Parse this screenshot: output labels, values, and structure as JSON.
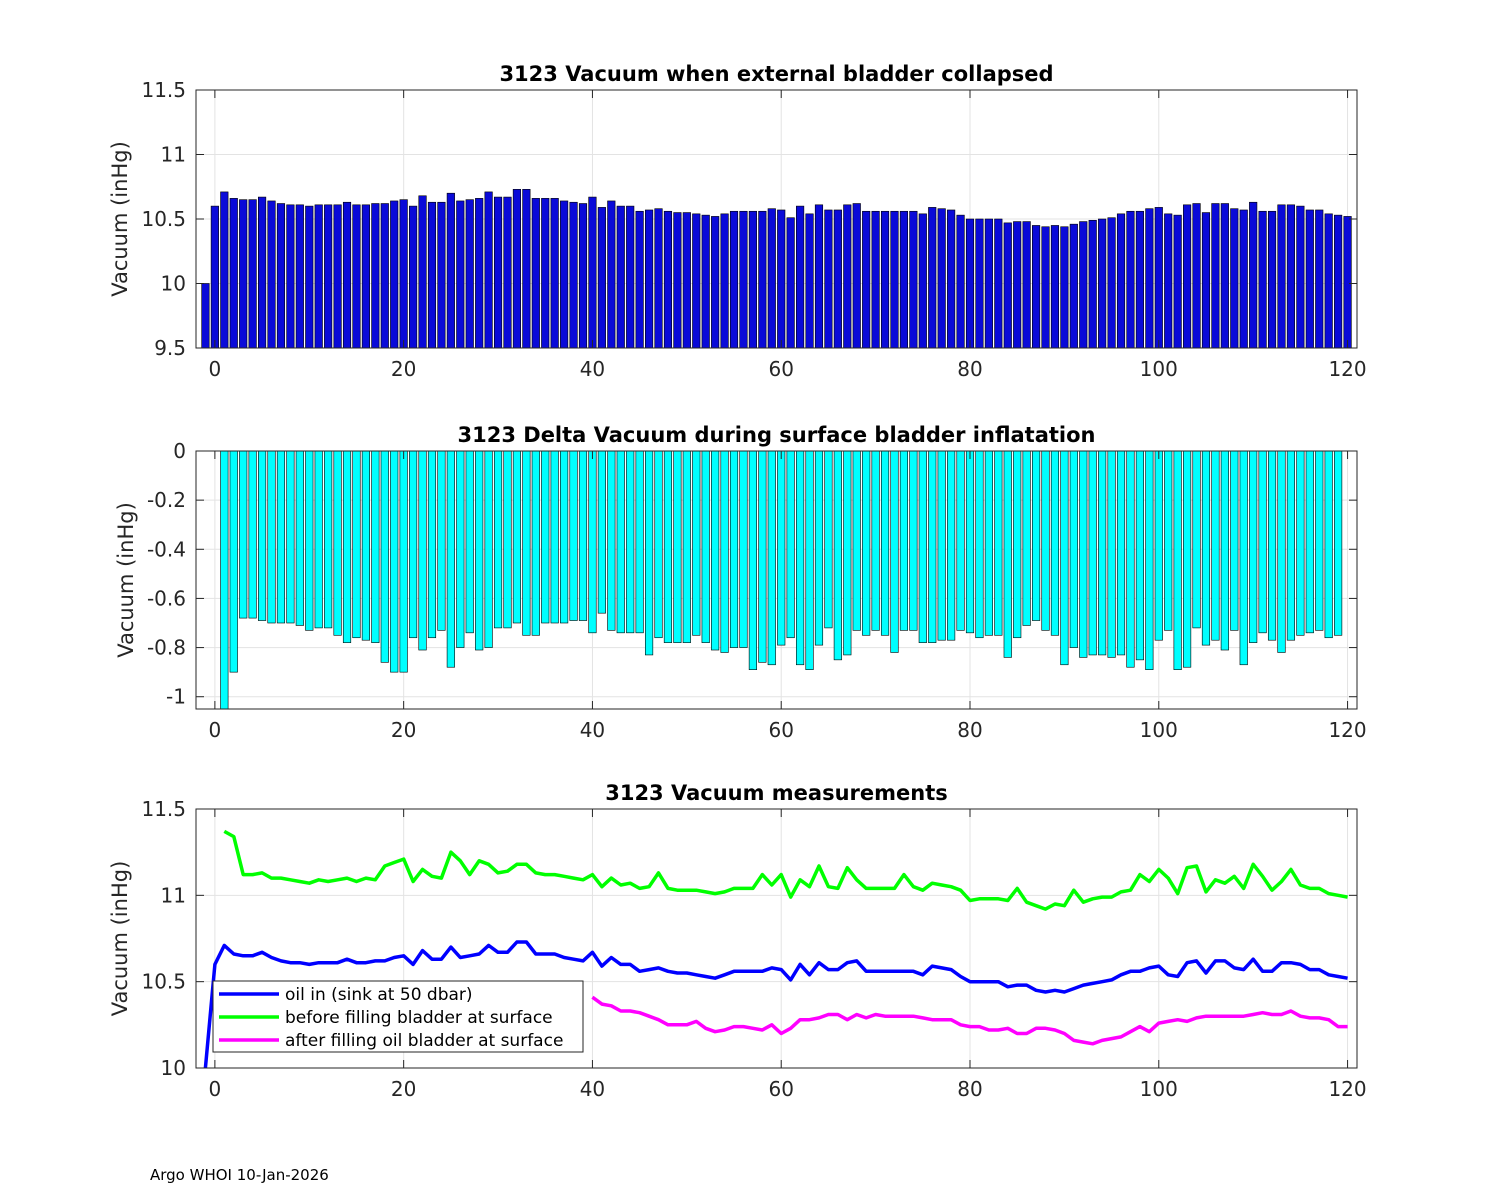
{
  "footer": "Argo WHOI 10-Jan-2026",
  "colors": {
    "blue": "#0000ff",
    "bar_blue": "#0a0ad8",
    "cyan": "#00ffff",
    "green": "#00ff00",
    "magenta": "#ff00ff",
    "grid": "#e3e3e3"
  },
  "chart_data": [
    {
      "type": "bar",
      "title": "3123 Vacuum when external bladder collapsed",
      "xlabel": "",
      "ylabel": "Vacuum (inHg)",
      "xlim": [
        -2,
        121
      ],
      "ylim": [
        9.5,
        11.5
      ],
      "xticks": [
        0,
        20,
        40,
        60,
        80,
        100,
        120
      ],
      "yticks": [
        9.5,
        10,
        10.5,
        11,
        11.5
      ],
      "grid": true,
      "x_start": -1,
      "values": [
        10,
        10.6,
        10.71,
        10.66,
        10.65,
        10.65,
        10.67,
        10.64,
        10.62,
        10.61,
        10.61,
        10.6,
        10.61,
        10.61,
        10.61,
        10.63,
        10.61,
        10.61,
        10.62,
        10.62,
        10.64,
        10.65,
        10.6,
        10.68,
        10.63,
        10.63,
        10.7,
        10.64,
        10.65,
        10.66,
        10.71,
        10.67,
        10.67,
        10.73,
        10.73,
        10.66,
        10.66,
        10.66,
        10.64,
        10.63,
        10.62,
        10.67,
        10.59,
        10.64,
        10.6,
        10.6,
        10.56,
        10.57,
        10.58,
        10.56,
        10.55,
        10.55,
        10.54,
        10.53,
        10.52,
        10.54,
        10.56,
        10.56,
        10.56,
        10.56,
        10.58,
        10.57,
        10.51,
        10.6,
        10.54,
        10.61,
        10.57,
        10.57,
        10.61,
        10.62,
        10.56,
        10.56,
        10.56,
        10.56,
        10.56,
        10.56,
        10.54,
        10.59,
        10.58,
        10.57,
        10.53,
        10.5,
        10.5,
        10.5,
        10.5,
        10.47,
        10.48,
        10.48,
        10.45,
        10.44,
        10.45,
        10.44,
        10.46,
        10.48,
        10.49,
        10.5,
        10.51,
        10.54,
        10.56,
        10.56,
        10.58,
        10.59,
        10.54,
        10.53,
        10.61,
        10.62,
        10.55,
        10.62,
        10.62,
        10.58,
        10.57,
        10.63,
        10.56,
        10.56,
        10.61,
        10.61,
        10.6,
        10.57,
        10.57,
        10.54,
        10.53,
        10.52
      ]
    },
    {
      "type": "bar",
      "title": "3123 Delta Vacuum during surface bladder inflatation",
      "xlabel": "",
      "ylabel": "Vacuum (inHg)",
      "xlim": [
        -2,
        121
      ],
      "ylim": [
        -1.05,
        0
      ],
      "xticks": [
        0,
        20,
        40,
        60,
        80,
        100,
        120
      ],
      "yticks": [
        -1,
        -0.8,
        -0.6,
        -0.4,
        -0.2,
        0
      ],
      "grid": true,
      "x_start": 1,
      "values": [
        -1.05,
        -0.9,
        -0.68,
        -0.68,
        -0.69,
        -0.7,
        -0.7,
        -0.7,
        -0.71,
        -0.73,
        -0.72,
        -0.72,
        -0.75,
        -0.78,
        -0.76,
        -0.77,
        -0.78,
        -0.86,
        -0.9,
        -0.9,
        -0.76,
        -0.81,
        -0.76,
        -0.73,
        -0.88,
        -0.8,
        -0.74,
        -0.81,
        -0.8,
        -0.72,
        -0.72,
        -0.7,
        -0.75,
        -0.75,
        -0.7,
        -0.7,
        -0.7,
        -0.69,
        -0.69,
        -0.74,
        -0.66,
        -0.73,
        -0.74,
        -0.74,
        -0.74,
        -0.83,
        -0.76,
        -0.78,
        -0.78,
        -0.78,
        -0.75,
        -0.78,
        -0.81,
        -0.82,
        -0.8,
        -0.8,
        -0.89,
        -0.86,
        -0.87,
        -0.79,
        -0.76,
        -0.87,
        -0.89,
        -0.79,
        -0.72,
        -0.85,
        -0.83,
        -0.73,
        -0.75,
        -0.73,
        -0.75,
        -0.82,
        -0.73,
        -0.73,
        -0.78,
        -0.78,
        -0.77,
        -0.77,
        -0.73,
        -0.74,
        -0.76,
        -0.75,
        -0.75,
        -0.84,
        -0.76,
        -0.71,
        -0.69,
        -0.73,
        -0.75,
        -0.87,
        -0.8,
        -0.84,
        -0.83,
        -0.83,
        -0.84,
        -0.83,
        -0.88,
        -0.85,
        -0.89,
        -0.77,
        -0.73,
        -0.89,
        -0.88,
        -0.72,
        -0.79,
        -0.77,
        -0.81,
        -0.73,
        -0.87,
        -0.78,
        -0.74,
        -0.77,
        -0.82,
        -0.77,
        -0.75,
        -0.74,
        -0.73,
        -0.76,
        -0.75
      ]
    },
    {
      "type": "line",
      "title": "3123 Vacuum measurements",
      "xlabel": "",
      "ylabel": "Vacuum (inHg)",
      "xlim": [
        -2,
        121
      ],
      "ylim": [
        10,
        11.5
      ],
      "xticks": [
        0,
        20,
        40,
        60,
        80,
        100,
        120
      ],
      "yticks": [
        10,
        10.5,
        11,
        11.5
      ],
      "grid": true,
      "legend_position": "bottom-left",
      "series": [
        {
          "name": "oil in (sink at 50 dbar)",
          "color": "#0000ff",
          "x_start": -1,
          "values": [
            10,
            10.6,
            10.71,
            10.66,
            10.65,
            10.65,
            10.67,
            10.64,
            10.62,
            10.61,
            10.61,
            10.6,
            10.61,
            10.61,
            10.61,
            10.63,
            10.61,
            10.61,
            10.62,
            10.62,
            10.64,
            10.65,
            10.6,
            10.68,
            10.63,
            10.63,
            10.7,
            10.64,
            10.65,
            10.66,
            10.71,
            10.67,
            10.67,
            10.73,
            10.73,
            10.66,
            10.66,
            10.66,
            10.64,
            10.63,
            10.62,
            10.67,
            10.59,
            10.64,
            10.6,
            10.6,
            10.56,
            10.57,
            10.58,
            10.56,
            10.55,
            10.55,
            10.54,
            10.53,
            10.52,
            10.54,
            10.56,
            10.56,
            10.56,
            10.56,
            10.58,
            10.57,
            10.51,
            10.6,
            10.54,
            10.61,
            10.57,
            10.57,
            10.61,
            10.62,
            10.56,
            10.56,
            10.56,
            10.56,
            10.56,
            10.56,
            10.54,
            10.59,
            10.58,
            10.57,
            10.53,
            10.5,
            10.5,
            10.5,
            10.5,
            10.47,
            10.48,
            10.48,
            10.45,
            10.44,
            10.45,
            10.44,
            10.46,
            10.48,
            10.49,
            10.5,
            10.51,
            10.54,
            10.56,
            10.56,
            10.58,
            10.59,
            10.54,
            10.53,
            10.61,
            10.62,
            10.55,
            10.62,
            10.62,
            10.58,
            10.57,
            10.63,
            10.56,
            10.56,
            10.61,
            10.61,
            10.6,
            10.57,
            10.57,
            10.54,
            10.53,
            10.52
          ]
        },
        {
          "name": "before filling bladder at surface",
          "color": "#00ff00",
          "x_start": 1,
          "values": [
            11.37,
            11.34,
            11.12,
            11.12,
            11.13,
            11.1,
            11.1,
            11.09,
            11.08,
            11.07,
            11.09,
            11.08,
            11.09,
            11.1,
            11.08,
            11.1,
            11.09,
            11.17,
            11.19,
            11.21,
            11.08,
            11.15,
            11.11,
            11.1,
            11.25,
            11.2,
            11.12,
            11.2,
            11.18,
            11.13,
            11.14,
            11.18,
            11.18,
            11.13,
            11.12,
            11.12,
            11.11,
            11.1,
            11.09,
            11.12,
            11.05,
            11.1,
            11.06,
            11.07,
            11.04,
            11.05,
            11.13,
            11.04,
            11.03,
            11.03,
            11.03,
            11.02,
            11.01,
            11.02,
            11.04,
            11.04,
            11.04,
            11.12,
            11.06,
            11.12,
            10.99,
            11.09,
            11.05,
            11.17,
            11.05,
            11.04,
            11.16,
            11.09,
            11.04,
            11.04,
            11.04,
            11.04,
            11.12,
            11.05,
            11.03,
            11.07,
            11.06,
            11.05,
            11.03,
            10.97,
            10.98,
            10.98,
            10.98,
            10.97,
            11.04,
            10.96,
            10.94,
            10.92,
            10.95,
            10.94,
            11.03,
            10.96,
            10.98,
            10.99,
            10.99,
            11.02,
            11.03,
            11.12,
            11.08,
            11.15,
            11.1,
            11.01,
            11.16,
            11.17,
            11.02,
            11.09,
            11.07,
            11.11,
            11.04,
            11.18,
            11.11,
            11.03,
            11.08,
            11.15,
            11.06,
            11.04,
            11.04,
            11.01,
            11.0,
            10.99
          ]
        },
        {
          "name": "after filling oil bladder at surface",
          "color": "#ff00ff",
          "x_start": 40,
          "values": [
            10.41,
            10.37,
            10.36,
            10.33,
            10.33,
            10.32,
            10.3,
            10.28,
            10.25,
            10.25,
            10.25,
            10.27,
            10.23,
            10.21,
            10.22,
            10.24,
            10.24,
            10.23,
            10.22,
            10.25,
            10.2,
            10.23,
            10.28,
            10.28,
            10.29,
            10.31,
            10.31,
            10.28,
            10.31,
            10.29,
            10.31,
            10.3,
            10.3,
            10.3,
            10.3,
            10.29,
            10.28,
            10.28,
            10.28,
            10.25,
            10.24,
            10.24,
            10.22,
            10.22,
            10.23,
            10.2,
            10.2,
            10.23,
            10.23,
            10.22,
            10.2,
            10.16,
            10.15,
            10.14,
            10.16,
            10.17,
            10.18,
            10.21,
            10.24,
            10.21,
            10.26,
            10.27,
            10.28,
            10.27,
            10.29,
            10.3,
            10.3,
            10.3,
            10.3,
            10.3,
            10.31,
            10.32,
            10.31,
            10.31,
            10.33,
            10.3,
            10.29,
            10.29,
            10.28,
            10.24,
            10.24
          ]
        }
      ]
    }
  ]
}
